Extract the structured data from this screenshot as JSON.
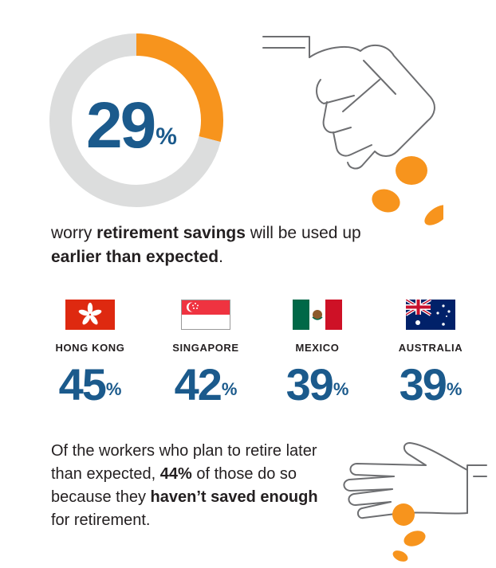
{
  "headline": {
    "value": "29",
    "unit": "%",
    "text_parts": [
      "worry ",
      "retirement savings",
      " will be used up ",
      "earlier than expected",
      "."
    ]
  },
  "countries": [
    {
      "name": "HONG KONG",
      "value": "45",
      "unit": "%",
      "flag": "hong-kong-flag"
    },
    {
      "name": "SINGAPORE",
      "value": "42",
      "unit": "%",
      "flag": "singapore-flag"
    },
    {
      "name": "MEXICO",
      "value": "39",
      "unit": "%",
      "flag": "mexico-flag"
    },
    {
      "name": "AUSTRALIA",
      "value": "39",
      "unit": "%",
      "flag": "australia-flag"
    }
  ],
  "footer": {
    "text_parts": [
      "Of the workers who plan to retire later than expected, ",
      "44%",
      " of those do so because they ",
      "haven’t saved enough",
      " for retirement."
    ]
  },
  "colors": {
    "accent_orange": "#f7941d",
    "ring_gray": "#dcdddd",
    "number_blue": "#1b5a8c",
    "line_art": "#6d6e71"
  },
  "chart_data": {
    "type": "pie",
    "categories": [
      "worry",
      ""
    ],
    "values": [
      29,
      71
    ]
  }
}
